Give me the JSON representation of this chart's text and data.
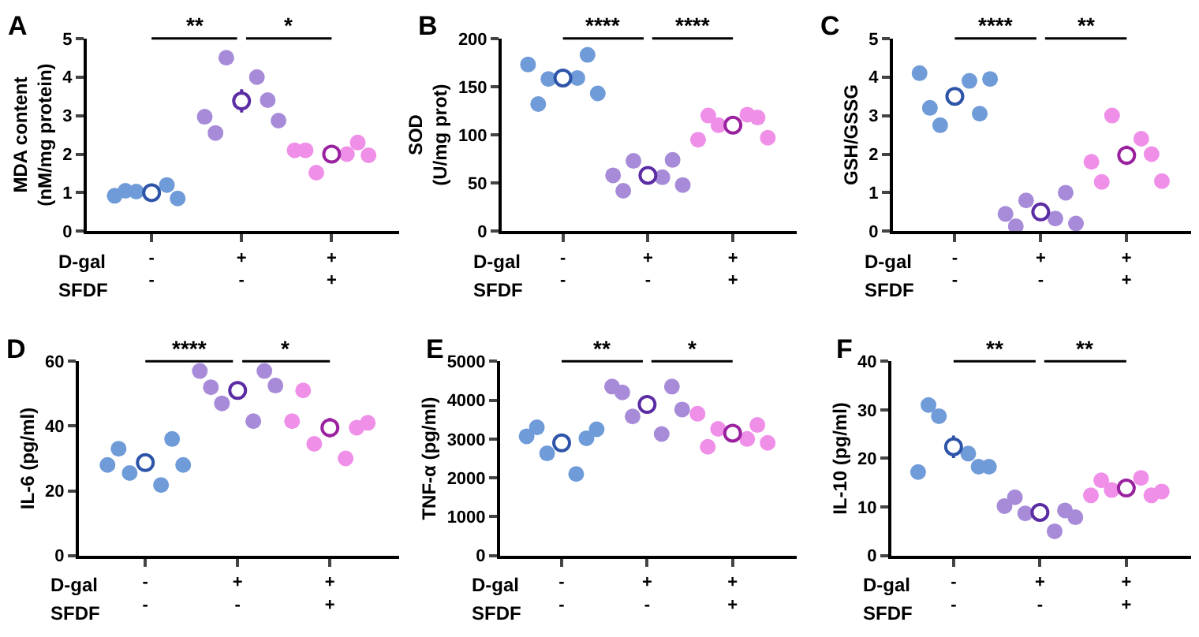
{
  "chart_data": [
    {
      "type": "scatter",
      "title": "A",
      "ylabel": "MDA content\n(nM/mg protein)",
      "categories": [
        "-\n-",
        "+\n-",
        "+\n+"
      ],
      "ylim": [
        0,
        5
      ],
      "yticks": [
        0,
        1,
        2,
        3,
        4,
        5
      ],
      "marker": "circle",
      "annotations": [
        "**",
        "*",
        "D-gal",
        "SFDF"
      ],
      "series": [
        {
          "color": "#6f9bd8",
          "x": [
            "-\n-",
            "-\n-",
            "-\n-",
            "-\n-",
            "-\n-"
          ],
          "values": [
            0.92,
            1.05,
            1.03,
            1.2,
            0.85
          ]
        },
        {
          "color": "#a78bd9",
          "x": [
            "+\n-",
            "+\n-",
            "+\n-",
            "+\n-",
            "+\n-",
            "+\n-"
          ],
          "values": [
            2.97,
            2.55,
            4.5,
            4.0,
            3.4,
            2.87
          ]
        },
        {
          "color": "#ef8fe8",
          "x": [
            "+\n+",
            "+\n+",
            "+\n+",
            "+\n+",
            "+\n+",
            "+\n+"
          ],
          "values": [
            2.1,
            2.1,
            1.52,
            2.0,
            2.3,
            1.97
          ]
        },
        {
          "colors": [
            "#2d54a8",
            "#5b2ca3",
            "#9a229f"
          ],
          "x": [
            "-\n-",
            "+\n-",
            "+\n+"
          ],
          "values": [
            1.0,
            3.38,
            2.0
          ],
          "errors": [
            0.05,
            0.3,
            0.08
          ]
        }
      ]
    },
    {
      "type": "scatter",
      "title": "B",
      "ylabel": "SOD\n(U/mg prot)",
      "categories": [
        "-\n-",
        "+\n-",
        "+\n+"
      ],
      "ylim": [
        0,
        200
      ],
      "yticks": [
        0,
        50,
        100,
        150,
        200
      ],
      "marker": "circle",
      "annotations": [
        "****",
        "****",
        "D-gal",
        "SFDF"
      ],
      "series": [
        {
          "color": "#6f9bd8",
          "x": [
            "-\n-",
            "-\n-",
            "-\n-",
            "-\n-",
            "-\n-",
            "-\n-"
          ],
          "values": [
            173,
            132,
            158,
            159,
            183,
            143
          ]
        },
        {
          "color": "#a78bd9",
          "x": [
            "+\n-",
            "+\n-",
            "+\n-",
            "+\n-",
            "+\n-",
            "+\n-"
          ],
          "values": [
            58,
            42,
            73,
            56,
            74,
            48
          ]
        },
        {
          "color": "#ef8fe8",
          "x": [
            "+\n+",
            "+\n+",
            "+\n+",
            "+\n+",
            "+\n+",
            "+\n+"
          ],
          "values": [
            95,
            120,
            110,
            121,
            118,
            97
          ]
        },
        {
          "colors": [
            "#2d54a8",
            "#5b2ca3",
            "#9a229f"
          ],
          "x": [
            "-\n-",
            "+\n-",
            "+\n+"
          ],
          "values": [
            159,
            58,
            110
          ],
          "errors": [
            9,
            6,
            5
          ]
        }
      ]
    },
    {
      "type": "scatter",
      "title": "C",
      "ylabel": "GSH/GSSG",
      "categories": [
        "-\n-",
        "+\n-",
        "+\n+"
      ],
      "ylim": [
        0,
        5
      ],
      "yticks": [
        0,
        1,
        2,
        3,
        4,
        5
      ],
      "marker": "circle",
      "annotations": [
        "****",
        "**",
        "D-gal",
        "SFDF"
      ],
      "series": [
        {
          "color": "#6f9bd8",
          "x": [
            "-\n-",
            "-\n-",
            "-\n-",
            "-\n-",
            "-\n-",
            "-\n-"
          ],
          "values": [
            4.1,
            3.2,
            2.75,
            3.9,
            3.05,
            3.95
          ]
        },
        {
          "color": "#a78bd9",
          "x": [
            "+\n-",
            "+\n-",
            "+\n-",
            "+\n-",
            "+\n-",
            "+\n-"
          ],
          "values": [
            0.45,
            0.13,
            0.8,
            0.33,
            1.0,
            0.2
          ]
        },
        {
          "color": "#ef8fe8",
          "x": [
            "+\n+",
            "+\n+",
            "+\n+",
            "+\n+",
            "+\n+",
            "+\n+"
          ],
          "values": [
            1.8,
            1.28,
            3.0,
            2.4,
            2.0,
            1.3
          ]
        },
        {
          "colors": [
            "#2d54a8",
            "#5b2ca3",
            "#9a229f"
          ],
          "x": [
            "-\n-",
            "+\n-",
            "+\n+"
          ],
          "values": [
            3.5,
            0.5,
            1.97
          ],
          "errors": [
            0.2,
            0.12,
            0.25
          ]
        }
      ]
    },
    {
      "type": "scatter",
      "title": "D",
      "ylabel": "IL-6 (pg/ml)",
      "categories": [
        "-\n-",
        "+\n-",
        "+\n+"
      ],
      "ylim": [
        0,
        60
      ],
      "yticks": [
        0,
        20,
        40,
        60
      ],
      "marker": "circle",
      "annotations": [
        "****",
        "*",
        "D-gal",
        "SFDF"
      ],
      "series": [
        {
          "color": "#6f9bd8",
          "x": [
            "-\n-",
            "-\n-",
            "-\n-",
            "-\n-",
            "-\n-",
            "-\n-"
          ],
          "values": [
            28,
            33,
            25.5,
            21.8,
            36,
            28
          ]
        },
        {
          "color": "#a78bd9",
          "x": [
            "+\n-",
            "+\n-",
            "+\n-",
            "+\n-",
            "+\n-",
            "+\n-"
          ],
          "values": [
            57,
            52,
            47,
            41.5,
            57,
            52.5
          ]
        },
        {
          "color": "#ef8fe8",
          "x": [
            "+\n+",
            "+\n+",
            "+\n+",
            "+\n+",
            "+\n+",
            "+\n+"
          ],
          "values": [
            41.5,
            51,
            34.5,
            30,
            39.5,
            41
          ]
        },
        {
          "colors": [
            "#2d54a8",
            "#5b2ca3",
            "#9a229f"
          ],
          "x": [
            "-\n-",
            "+\n-",
            "+\n+"
          ],
          "values": [
            28.7,
            51,
            39.5
          ],
          "errors": [
            2,
            2.5,
            3
          ]
        }
      ]
    },
    {
      "type": "scatter",
      "title": "E",
      "ylabel": "TNF-α (pg/ml)",
      "categories": [
        "-\n-",
        "+\n-",
        "+\n+"
      ],
      "ylim": [
        0,
        5000
      ],
      "yticks": [
        0,
        1000,
        2000,
        3000,
        4000,
        5000
      ],
      "marker": "circle",
      "annotations": [
        "**",
        "*",
        "D-gal",
        "SFDF"
      ],
      "series": [
        {
          "color": "#6f9bd8",
          "x": [
            "-\n-",
            "-\n-",
            "-\n-",
            "-\n-",
            "-\n-",
            "-\n-"
          ],
          "values": [
            3070,
            3300,
            2630,
            2100,
            3020,
            3250
          ]
        },
        {
          "color": "#a78bd9",
          "x": [
            "+\n-",
            "+\n-",
            "+\n-",
            "+\n-",
            "+\n-",
            "+\n-"
          ],
          "values": [
            4350,
            4200,
            3580,
            3130,
            4350,
            3760
          ]
        },
        {
          "color": "#ef8fe8",
          "x": [
            "+\n+",
            "+\n+",
            "+\n+",
            "+\n+",
            "+\n+",
            "+\n+"
          ],
          "values": [
            3650,
            2800,
            3260,
            3000,
            3360,
            2900
          ]
        },
        {
          "colors": [
            "#2d54a8",
            "#5b2ca3",
            "#9a229f"
          ],
          "x": [
            "-\n-",
            "+\n-",
            "+\n+"
          ],
          "values": [
            2900,
            3890,
            3150
          ],
          "errors": [
            180,
            200,
            130
          ]
        }
      ]
    },
    {
      "type": "scatter",
      "title": "F",
      "ylabel": "IL-10 (pg/ml)",
      "categories": [
        "-\n-",
        "+\n-",
        "+\n+"
      ],
      "ylim": [
        0,
        40
      ],
      "yticks": [
        0,
        10,
        20,
        30,
        40
      ],
      "marker": "circle",
      "annotations": [
        "**",
        "**",
        "D-gal",
        "SFDF"
      ],
      "series": [
        {
          "color": "#6f9bd8",
          "x": [
            "-\n-",
            "-\n-",
            "-\n-",
            "-\n-",
            "-\n-",
            "-\n-"
          ],
          "values": [
            17.2,
            31,
            28.7,
            21,
            18.3,
            18.3
          ]
        },
        {
          "color": "#a78bd9",
          "x": [
            "+\n-",
            "+\n-",
            "+\n-",
            "+\n-",
            "+\n-",
            "+\n-"
          ],
          "values": [
            10.2,
            12,
            8.7,
            5,
            9.3,
            7.9
          ]
        },
        {
          "color": "#ef8fe8",
          "x": [
            "+\n+",
            "+\n+",
            "+\n+",
            "+\n+",
            "+\n+",
            "+\n+"
          ],
          "values": [
            12.4,
            15.5,
            13.5,
            16,
            12.4,
            13.2
          ]
        },
        {
          "colors": [
            "#2d54a8",
            "#5b2ca3",
            "#9a229f"
          ],
          "x": [
            "-\n-",
            "+\n-",
            "+\n+"
          ],
          "values": [
            22.4,
            8.9,
            13.9
          ],
          "errors": [
            2.3,
            1,
            0.6
          ]
        }
      ]
    }
  ]
}
